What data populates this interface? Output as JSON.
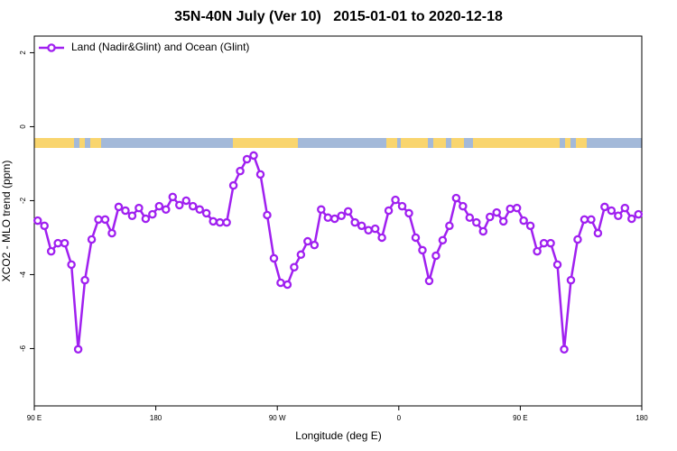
{
  "chart_data": {
    "type": "line",
    "title": "35N-40N July (Ver 10)   2015-01-01 to 2020-12-18",
    "x_label": "Longitude (deg E)",
    "y_label": "XCO2 - MLO trend (ppm)",
    "legend_position": "top-left",
    "xlim": [
      90,
      540
    ],
    "ylim": [
      -7.55,
      2.45
    ],
    "xticks": [
      {
        "value": 90,
        "label": "90 E"
      },
      180,
      {
        "value": 270,
        "label": "90 W"
      },
      {
        "value": 360,
        "label": "0"
      },
      {
        "value": 450,
        "label": "90 E"
      },
      {
        "value": 540,
        "label": "180"
      }
    ],
    "yticks": [
      2,
      0,
      -2,
      -4,
      -6
    ],
    "x": [
      92.5,
      97.5,
      102.5,
      107.5,
      112.5,
      117.5,
      122.5,
      127.5,
      132.5,
      137.5,
      142.5,
      147.5,
      152.5,
      157.5,
      162.5,
      167.5,
      172.5,
      177.5,
      182.5,
      187.5,
      192.5,
      197.5,
      202.5,
      207.5,
      212.5,
      217.5,
      222.5,
      227.5,
      232.5,
      237.5,
      242.5,
      247.5,
      252.5,
      257.5,
      262.5,
      267.5,
      272.5,
      277.5,
      282.5,
      287.5,
      292.5,
      297.5,
      302.5,
      307.5,
      312.5,
      317.5,
      322.5,
      327.5,
      332.5,
      337.5,
      342.5,
      347.5,
      352.5,
      357.5,
      362.5,
      367.5,
      372.5,
      377.5,
      382.5,
      387.5,
      392.5,
      397.5,
      402.5,
      407.5,
      412.5,
      417.5,
      422.5,
      427.5,
      432.5,
      437.5,
      442.5,
      447.5,
      452.5,
      457.5,
      462.5,
      467.5,
      472.5,
      477.5,
      482.5,
      487.5,
      492.5,
      497.5,
      502.5,
      507.5,
      512.5,
      517.5,
      522.5,
      527.5,
      532.5,
      537.5
    ],
    "series": [
      {
        "name": "Land (Nadir&Glint) and Ocean (Glint)",
        "color": "#a020f0",
        "values": [
          -2.54,
          -2.68,
          -3.37,
          -3.15,
          -3.15,
          -3.73,
          -6.02,
          -4.15,
          -3.05,
          -2.51,
          -2.51,
          -2.88,
          -2.17,
          -2.27,
          -2.41,
          -2.2,
          -2.49,
          -2.37,
          -2.15,
          -2.24,
          -1.9,
          -2.12,
          -2.0,
          -2.15,
          -2.24,
          -2.34,
          -2.56,
          -2.59,
          -2.59,
          -1.59,
          -1.2,
          -0.88,
          -0.78,
          -1.29,
          -2.39,
          -3.56,
          -4.22,
          -4.27,
          -3.8,
          -3.46,
          -3.1,
          -3.2,
          -2.24,
          -2.46,
          -2.49,
          -2.41,
          -2.29,
          -2.59,
          -2.68,
          -2.8,
          -2.76,
          -3.0,
          -2.27,
          -1.98,
          -2.15,
          -2.34,
          -3.0,
          -3.34,
          -4.17,
          -3.49,
          -3.07,
          -2.68,
          -1.93,
          -2.15,
          -2.46,
          -2.59,
          -2.83,
          -2.44,
          -2.32,
          -2.56,
          -2.22,
          -2.2,
          -2.54,
          -2.68,
          -3.37,
          -3.15,
          -3.15,
          -3.73,
          -6.02,
          -4.15,
          -3.05,
          -2.51,
          -2.51,
          -2.88,
          -2.17,
          -2.27,
          -2.41,
          -2.2,
          -2.49,
          -2.37
        ]
      }
    ]
  }
}
